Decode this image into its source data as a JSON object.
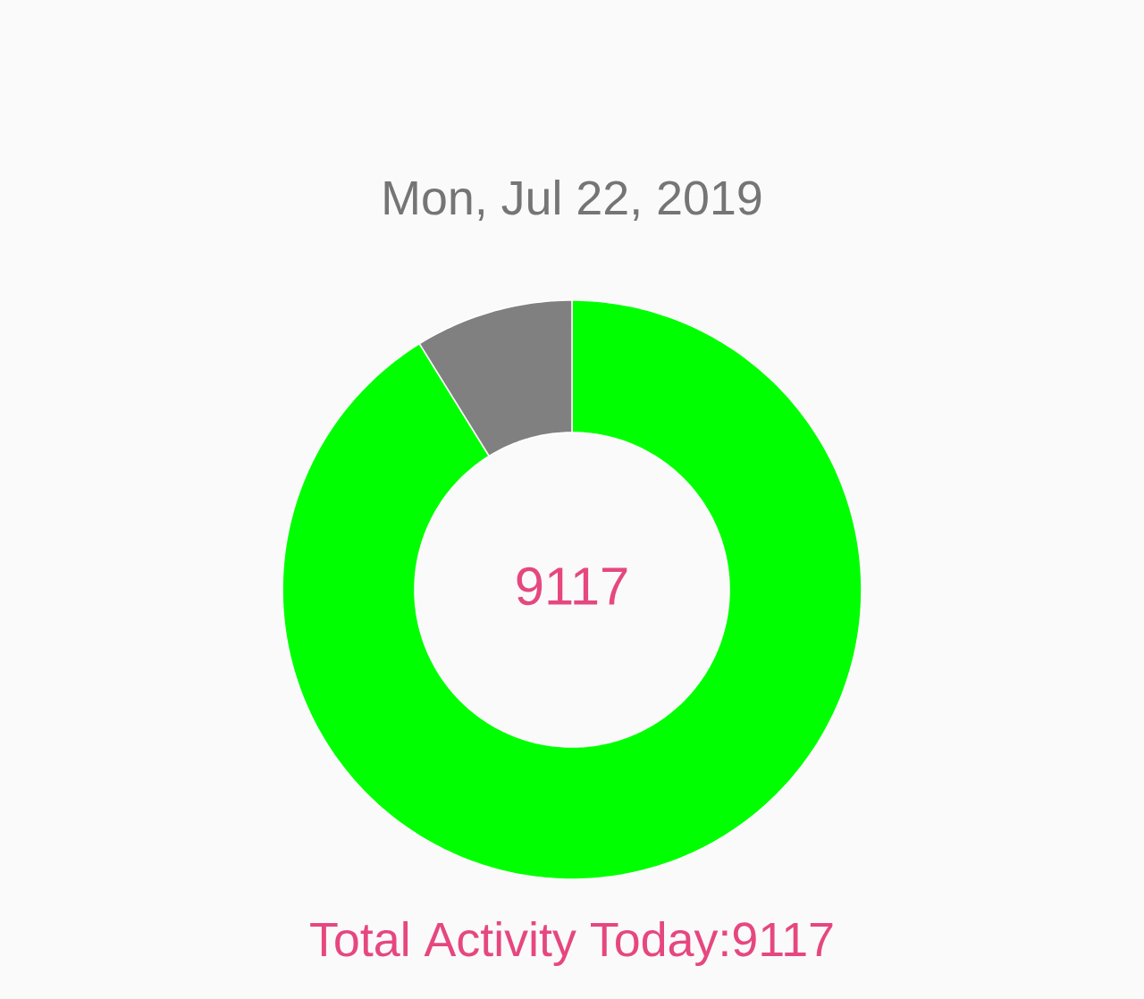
{
  "chart_data": {
    "type": "donut",
    "title": "Mon, Jul 22, 2019",
    "categories": [
      null,
      null
    ],
    "values": [
      91.17,
      8.83
    ],
    "colors": [
      "#00ff00",
      "#808080"
    ],
    "annotations": [
      "9117",
      "Total Activity Today:9117"
    ]
  }
}
